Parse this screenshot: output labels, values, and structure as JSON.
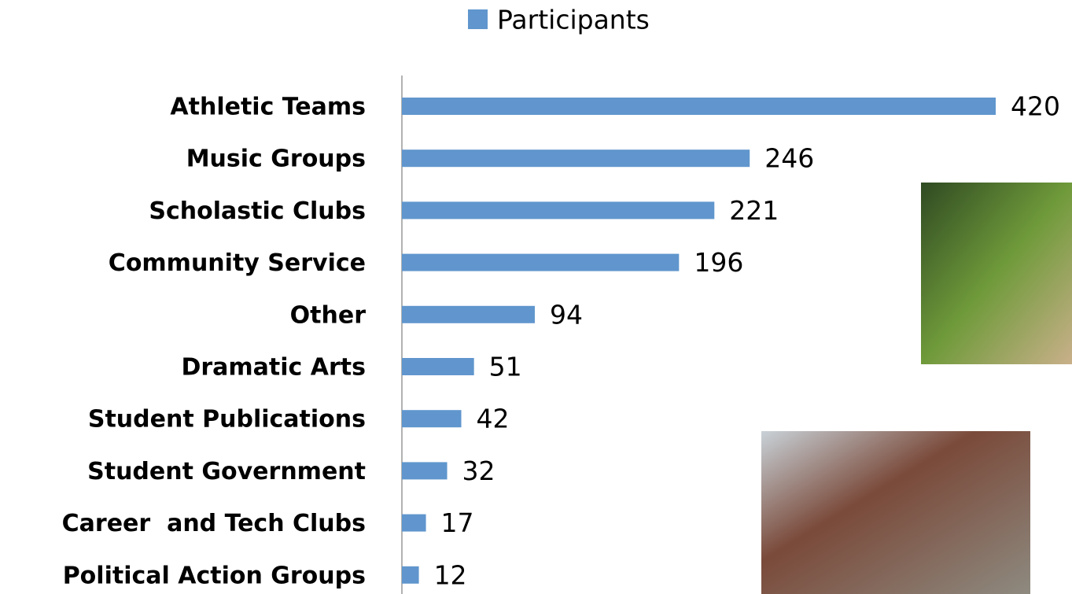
{
  "chart_data": {
    "type": "bar",
    "orientation": "horizontal",
    "categories": [
      "Athletic Teams",
      "Music Groups",
      "Scholastic Clubs",
      "Community Service",
      "Other",
      "Dramatic Arts",
      "Student Publications",
      "Student Government",
      "Career  and Tech Clubs",
      "Political Action Groups"
    ],
    "series": [
      {
        "name": "Participants",
        "color": "#6096cd",
        "values": [
          420,
          246,
          221,
          196,
          94,
          51,
          42,
          32,
          17,
          12
        ]
      }
    ],
    "legend": "top"
  }
}
